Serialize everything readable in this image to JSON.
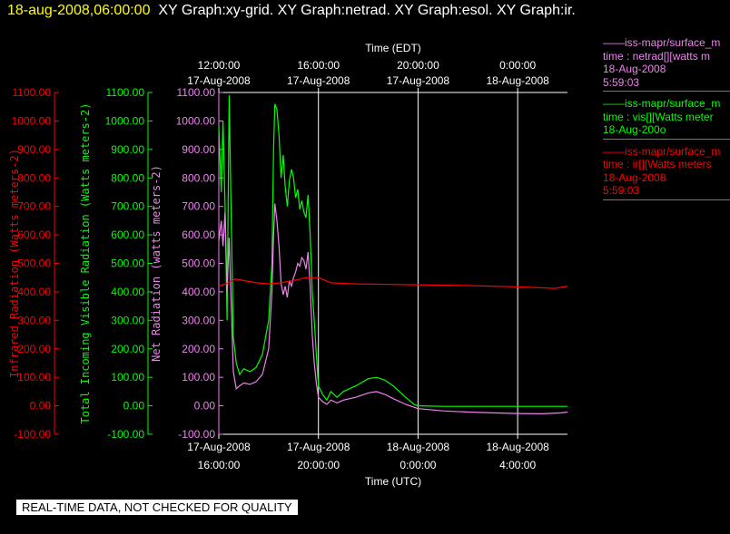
{
  "header": {
    "timestamp": "18-aug-2008,06:00:00",
    "graph_titles": "XY Graph:xy-grid.  XY Graph:netrad.  XY Graph:esol.  XY Graph:ir."
  },
  "legend": [
    {
      "color": "#ee82ee",
      "lines": [
        "——iss-mapr/surface_m",
        "time : netrad[][watts m",
        "18-Aug-2008",
        "5:59:03"
      ]
    },
    {
      "color": "#00ff00",
      "lines": [
        "——iss-mapr/surface_m",
        "time : vis[][Watts meter",
        "18-Aug-200o"
      ]
    },
    {
      "color": "#ff0000",
      "lines": [
        "——iss-mapr/surface_m",
        "time : ir[][Watts meters",
        "18-Aug-2008",
        "5:59:03"
      ]
    }
  ],
  "disclaimer": "REAL-TIME DATA, NOT CHECKED FOR QUALITY",
  "colors": {
    "ir": "#ff0000",
    "vis": "#00ff00",
    "net": "#ee82ee",
    "axis": "#ffffff",
    "grid": "#ffffff"
  },
  "chart_data": {
    "type": "line",
    "xlabel_bottom": "Time (UTC)",
    "xlabel_top": "Time (EDT)",
    "x_ticks_bottom": [
      {
        "x": "2008-08-17T16:00:00Z",
        "line1": "17-Aug-2008",
        "line2": "16:00:00"
      },
      {
        "x": "2008-08-17T20:00:00Z",
        "line1": "17-Aug-2008",
        "line2": "20:00:00"
      },
      {
        "x": "2008-08-18T00:00:00Z",
        "line1": "18-Aug-2008",
        "line2": "0:00:00"
      },
      {
        "x": "2008-08-18T04:00:00Z",
        "line1": "18-Aug-2008",
        "line2": "4:00:00"
      }
    ],
    "x_ticks_top": [
      {
        "x": "2008-08-17T16:00:00Z",
        "line1": "12:00:00",
        "line2": "17-Aug-2008"
      },
      {
        "x": "2008-08-17T20:00:00Z",
        "line1": "16:00:00",
        "line2": "17-Aug-2008"
      },
      {
        "x": "2008-08-18T00:00:00Z",
        "line1": "20:00:00",
        "line2": "17-Aug-2008"
      },
      {
        "x": "2008-08-18T04:00:00Z",
        "line1": "0:00:00",
        "line2": "18-Aug-2008"
      }
    ],
    "xlim": [
      "2008-08-17T16:00:00Z",
      "2008-08-18T06:00:00Z"
    ],
    "grid": "vertical lines at x ticks",
    "y_axes": [
      {
        "id": "ir",
        "label": "Infrared Radiation (Watts meters-2)",
        "color": "#ff0000",
        "ylim": [
          -100,
          1100
        ],
        "ticks": [
          "-100.00",
          "0.00",
          "100.00",
          "200.00",
          "300.00",
          "400.00",
          "500.00",
          "600.00",
          "700.00",
          "800.00",
          "900.00",
          "1000.00",
          "1100.00"
        ]
      },
      {
        "id": "vis",
        "label": "Total Incoming Visible Radiation (Watts meters-2)",
        "color": "#00ff00",
        "ylim": [
          -100,
          1100
        ],
        "ticks": [
          "-100.00",
          "0.00",
          "100.00",
          "200.00",
          "300.00",
          "400.00",
          "500.00",
          "600.00",
          "700.00",
          "800.00",
          "900.00",
          "1000.00",
          "1100.00"
        ]
      },
      {
        "id": "net",
        "label": "Net Radiation (watts meters-2)",
        "color": "#ee82ee",
        "ylim": [
          -100,
          1100
        ],
        "ticks": [
          "-100.00",
          "0.00",
          "100.00",
          "200.00",
          "300.00",
          "400.00",
          "500.00",
          "600.00",
          "700.00",
          "800.00",
          "900.00",
          "1000.00",
          "1100.00"
        ]
      }
    ],
    "series": [
      {
        "id": "vis",
        "color": "#00ff00",
        "points": [
          [
            "2008-08-17T16:00:00Z",
            980
          ],
          [
            "2008-08-17T16:06:00Z",
            750
          ],
          [
            "2008-08-17T16:10:00Z",
            1000
          ],
          [
            "2008-08-17T16:15:00Z",
            700
          ],
          [
            "2008-08-17T16:20:00Z",
            300
          ],
          [
            "2008-08-17T16:25:00Z",
            1090
          ],
          [
            "2008-08-17T16:30:00Z",
            650
          ],
          [
            "2008-08-17T16:35:00Z",
            240
          ],
          [
            "2008-08-17T16:42:00Z",
            150
          ],
          [
            "2008-08-17T16:50:00Z",
            110
          ],
          [
            "2008-08-17T17:00:00Z",
            130
          ],
          [
            "2008-08-17T17:15:00Z",
            120
          ],
          [
            "2008-08-17T17:30:00Z",
            135
          ],
          [
            "2008-08-17T17:45:00Z",
            180
          ],
          [
            "2008-08-17T18:00:00Z",
            300
          ],
          [
            "2008-08-17T18:08:00Z",
            500
          ],
          [
            "2008-08-17T18:12:00Z",
            900
          ],
          [
            "2008-08-17T18:15:00Z",
            1060
          ],
          [
            "2008-08-17T18:20:00Z",
            1040
          ],
          [
            "2008-08-17T18:25:00Z",
            950
          ],
          [
            "2008-08-17T18:30:00Z",
            800
          ],
          [
            "2008-08-17T18:35:00Z",
            880
          ],
          [
            "2008-08-17T18:40:00Z",
            770
          ],
          [
            "2008-08-17T18:45:00Z",
            700
          ],
          [
            "2008-08-17T18:50:00Z",
            790
          ],
          [
            "2008-08-17T18:55:00Z",
            830
          ],
          [
            "2008-08-17T19:00:00Z",
            800
          ],
          [
            "2008-08-17T19:05:00Z",
            730
          ],
          [
            "2008-08-17T19:10:00Z",
            760
          ],
          [
            "2008-08-17T19:15:00Z",
            690
          ],
          [
            "2008-08-17T19:20:00Z",
            720
          ],
          [
            "2008-08-17T19:25:00Z",
            680
          ],
          [
            "2008-08-17T19:30:00Z",
            660
          ],
          [
            "2008-08-17T19:35:00Z",
            740
          ],
          [
            "2008-08-17T19:40:00Z",
            600
          ],
          [
            "2008-08-17T19:45:00Z",
            400
          ],
          [
            "2008-08-17T19:50:00Z",
            300
          ],
          [
            "2008-08-17T19:55:00Z",
            180
          ],
          [
            "2008-08-17T20:00:00Z",
            70
          ],
          [
            "2008-08-17T20:10:00Z",
            40
          ],
          [
            "2008-08-17T20:20:00Z",
            20
          ],
          [
            "2008-08-17T20:30:00Z",
            50
          ],
          [
            "2008-08-17T20:45:00Z",
            30
          ],
          [
            "2008-08-17T21:00:00Z",
            50
          ],
          [
            "2008-08-17T21:30:00Z",
            70
          ],
          [
            "2008-08-17T22:00:00Z",
            95
          ],
          [
            "2008-08-17T22:20:00Z",
            100
          ],
          [
            "2008-08-17T22:40:00Z",
            90
          ],
          [
            "2008-08-17T23:00:00Z",
            70
          ],
          [
            "2008-08-17T23:30:00Z",
            30
          ],
          [
            "2008-08-17T23:50:00Z",
            5
          ],
          [
            "2008-08-18T00:00:00Z",
            0
          ],
          [
            "2008-08-18T01:00:00Z",
            -2
          ],
          [
            "2008-08-18T03:00:00Z",
            -2
          ],
          [
            "2008-08-18T06:00:00Z",
            -2
          ]
        ]
      },
      {
        "id": "net",
        "color": "#ee82ee",
        "points": [
          [
            "2008-08-17T16:00:00Z",
            580
          ],
          [
            "2008-08-17T16:06:00Z",
            650
          ],
          [
            "2008-08-17T16:10:00Z",
            560
          ],
          [
            "2008-08-17T16:15:00Z",
            680
          ],
          [
            "2008-08-17T16:20:00Z",
            400
          ],
          [
            "2008-08-17T16:25:00Z",
            590
          ],
          [
            "2008-08-17T16:30:00Z",
            350
          ],
          [
            "2008-08-17T16:35:00Z",
            120
          ],
          [
            "2008-08-17T16:42:00Z",
            60
          ],
          [
            "2008-08-17T16:50:00Z",
            70
          ],
          [
            "2008-08-17T17:00:00Z",
            80
          ],
          [
            "2008-08-17T17:15:00Z",
            75
          ],
          [
            "2008-08-17T17:30:00Z",
            85
          ],
          [
            "2008-08-17T17:45:00Z",
            110
          ],
          [
            "2008-08-17T18:00:00Z",
            200
          ],
          [
            "2008-08-17T18:08:00Z",
            400
          ],
          [
            "2008-08-17T18:12:00Z",
            600
          ],
          [
            "2008-08-17T18:15:00Z",
            710
          ],
          [
            "2008-08-17T18:20:00Z",
            650
          ],
          [
            "2008-08-17T18:25:00Z",
            560
          ],
          [
            "2008-08-17T18:30:00Z",
            430
          ],
          [
            "2008-08-17T18:35:00Z",
            390
          ],
          [
            "2008-08-17T18:40:00Z",
            420
          ],
          [
            "2008-08-17T18:45:00Z",
            380
          ],
          [
            "2008-08-17T18:50:00Z",
            440
          ],
          [
            "2008-08-17T18:55:00Z",
            420
          ],
          [
            "2008-08-17T19:00:00Z",
            450
          ],
          [
            "2008-08-17T19:05:00Z",
            470
          ],
          [
            "2008-08-17T19:10:00Z",
            500
          ],
          [
            "2008-08-17T19:15:00Z",
            490
          ],
          [
            "2008-08-17T19:20:00Z",
            520
          ],
          [
            "2008-08-17T19:25:00Z",
            510
          ],
          [
            "2008-08-17T19:30:00Z",
            480
          ],
          [
            "2008-08-17T19:35:00Z",
            540
          ],
          [
            "2008-08-17T19:40:00Z",
            420
          ],
          [
            "2008-08-17T19:45:00Z",
            250
          ],
          [
            "2008-08-17T19:50:00Z",
            150
          ],
          [
            "2008-08-17T19:55:00Z",
            80
          ],
          [
            "2008-08-17T20:00:00Z",
            30
          ],
          [
            "2008-08-17T20:10:00Z",
            15
          ],
          [
            "2008-08-17T20:20:00Z",
            5
          ],
          [
            "2008-08-17T20:30:00Z",
            20
          ],
          [
            "2008-08-17T20:45:00Z",
            10
          ],
          [
            "2008-08-17T21:00:00Z",
            20
          ],
          [
            "2008-08-17T21:30:00Z",
            30
          ],
          [
            "2008-08-17T22:00:00Z",
            45
          ],
          [
            "2008-08-17T22:20:00Z",
            50
          ],
          [
            "2008-08-17T22:40:00Z",
            40
          ],
          [
            "2008-08-17T23:00:00Z",
            25
          ],
          [
            "2008-08-17T23:30:00Z",
            5
          ],
          [
            "2008-08-18T00:00:00Z",
            -10
          ],
          [
            "2008-08-18T01:00:00Z",
            -18
          ],
          [
            "2008-08-18T02:00:00Z",
            -22
          ],
          [
            "2008-08-18T03:00:00Z",
            -25
          ],
          [
            "2008-08-18T04:00:00Z",
            -27
          ],
          [
            "2008-08-18T05:00:00Z",
            -28
          ],
          [
            "2008-08-18T05:45:00Z",
            -25
          ],
          [
            "2008-08-18T06:00:00Z",
            -22
          ]
        ]
      },
      {
        "id": "ir",
        "color": "#ff0000",
        "points": [
          [
            "2008-08-17T16:00:00Z",
            420
          ],
          [
            "2008-08-17T16:20:00Z",
            430
          ],
          [
            "2008-08-17T16:40:00Z",
            445
          ],
          [
            "2008-08-17T17:00:00Z",
            440
          ],
          [
            "2008-08-17T17:30:00Z",
            432
          ],
          [
            "2008-08-17T18:00:00Z",
            428
          ],
          [
            "2008-08-17T18:30:00Z",
            432
          ],
          [
            "2008-08-17T19:00:00Z",
            440
          ],
          [
            "2008-08-17T19:30:00Z",
            450
          ],
          [
            "2008-08-17T20:00:00Z",
            450
          ],
          [
            "2008-08-17T20:30:00Z",
            432
          ],
          [
            "2008-08-17T21:30:00Z",
            428
          ],
          [
            "2008-08-17T23:00:00Z",
            426
          ],
          [
            "2008-08-18T00:00:00Z",
            425
          ],
          [
            "2008-08-18T02:00:00Z",
            422
          ],
          [
            "2008-08-18T04:00:00Z",
            418
          ],
          [
            "2008-08-18T05:30:00Z",
            412
          ],
          [
            "2008-08-18T06:00:00Z",
            420
          ]
        ]
      }
    ]
  }
}
